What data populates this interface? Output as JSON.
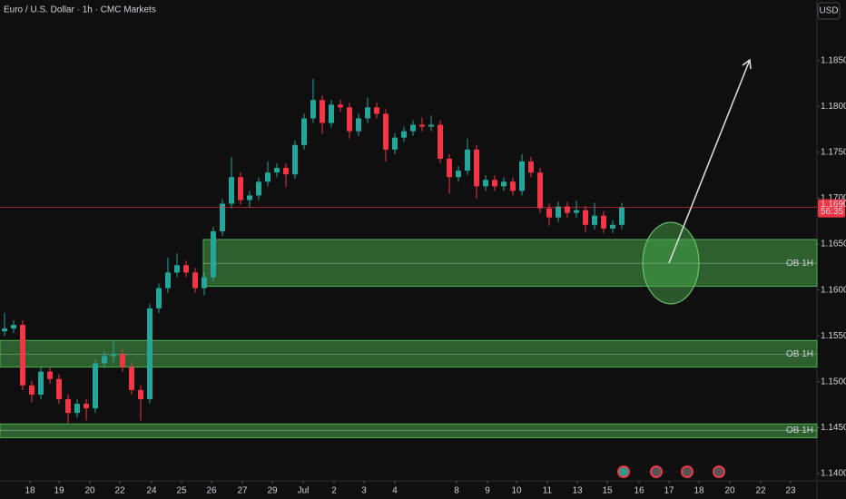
{
  "chart_data": {
    "type": "candlestick",
    "title": "Euro / U.S. Dollar · 1h · CMC Markets",
    "currency": "USD",
    "up_color": "#26a69a",
    "down_color": "#f23645",
    "open": [
      1.1555,
      1.1558,
      1.1562,
      1.1496,
      1.1486,
      1.1511,
      1.1503,
      1.1481,
      1.1466,
      1.1476,
      1.1471,
      1.152,
      1.1528,
      1.153,
      1.1516,
      1.1491,
      1.1481,
      1.158,
      1.1602,
      1.1619,
      1.1627,
      1.1619,
      1.1602,
      1.1614,
      1.1664,
      1.1694,
      1.1723,
      1.1698,
      1.1703,
      1.1718,
      1.1728,
      1.1733,
      1.1726,
      1.1758,
      1.1787,
      1.1807,
      1.1782,
      1.1802,
      1.1799,
      1.1773,
      1.1787,
      1.1799,
      1.1792,
      1.1753,
      1.1766,
      1.1773,
      1.178,
      1.1778,
      1.178,
      1.1743,
      1.1723,
      1.173,
      1.1753,
      1.1713,
      1.172,
      1.1713,
      1.1718,
      1.1708,
      1.174,
      1.1728,
      1.1689,
      1.1679,
      1.1691,
      1.1684,
      1.1687,
      1.1671,
      1.1681,
      1.1667,
      1.1671
    ],
    "high": [
      1.1575,
      1.1567,
      1.1567,
      1.1501,
      1.1516,
      1.1516,
      1.1508,
      1.1486,
      1.1481,
      1.1481,
      1.1525,
      1.1533,
      1.1545,
      1.1535,
      1.1521,
      1.1496,
      1.1585,
      1.1607,
      1.1635,
      1.164,
      1.1632,
      1.1624,
      1.1619,
      1.1669,
      1.1699,
      1.1745,
      1.1728,
      1.1708,
      1.1723,
      1.174,
      1.1738,
      1.1738,
      1.1763,
      1.1792,
      1.183,
      1.1812,
      1.1807,
      1.1807,
      1.1804,
      1.1792,
      1.181,
      1.1804,
      1.1797,
      1.1771,
      1.1778,
      1.1785,
      1.1788,
      1.179,
      1.1785,
      1.1748,
      1.1735,
      1.1765,
      1.1758,
      1.1725,
      1.1725,
      1.1723,
      1.1723,
      1.1748,
      1.1745,
      1.1733,
      1.1694,
      1.1696,
      1.1696,
      1.1697,
      1.1692,
      1.1695,
      1.1686,
      1.1676,
      1.1695
    ],
    "low": [
      1.155,
      1.1553,
      1.1491,
      1.1478,
      1.1481,
      1.1498,
      1.1476,
      1.1455,
      1.1461,
      1.1458,
      1.1466,
      1.1515,
      1.152,
      1.1511,
      1.1486,
      1.1458,
      1.1476,
      1.1575,
      1.1597,
      1.1614,
      1.1614,
      1.1597,
      1.1594,
      1.1609,
      1.1659,
      1.1689,
      1.1693,
      1.169,
      1.1698,
      1.1713,
      1.1723,
      1.1712,
      1.1721,
      1.1753,
      1.1782,
      1.177,
      1.1777,
      1.1794,
      1.1765,
      1.1768,
      1.1782,
      1.1787,
      1.174,
      1.1748,
      1.1761,
      1.1768,
      1.1773,
      1.1773,
      1.1738,
      1.1705,
      1.1718,
      1.1725,
      1.17,
      1.1708,
      1.1708,
      1.1708,
      1.1703,
      1.1703,
      1.1723,
      1.1684,
      1.167,
      1.1674,
      1.1679,
      1.1679,
      1.1663,
      1.1666,
      1.1662,
      1.1662,
      1.1666
    ],
    "close": [
      1.1558,
      1.1562,
      1.1496,
      1.1486,
      1.1511,
      1.1503,
      1.1481,
      1.1466,
      1.1476,
      1.1471,
      1.152,
      1.1528,
      1.153,
      1.1516,
      1.1491,
      1.1481,
      1.158,
      1.1602,
      1.1619,
      1.1627,
      1.1619,
      1.1602,
      1.1614,
      1.1664,
      1.1694,
      1.1723,
      1.1698,
      1.1703,
      1.1718,
      1.1728,
      1.1733,
      1.1726,
      1.1758,
      1.1787,
      1.1807,
      1.1782,
      1.1802,
      1.1799,
      1.1773,
      1.1787,
      1.1799,
      1.1792,
      1.1753,
      1.1766,
      1.1773,
      1.178,
      1.1778,
      1.178,
      1.1743,
      1.1723,
      1.173,
      1.1753,
      1.1713,
      1.172,
      1.1713,
      1.1718,
      1.1708,
      1.174,
      1.1728,
      1.1689,
      1.1679,
      1.1691,
      1.1684,
      1.1687,
      1.1671,
      1.1681,
      1.1667,
      1.1671,
      1.169
    ],
    "xlim": [
      -0.5,
      89.5
    ],
    "xticks": [
      {
        "value": 2.8,
        "label": "18"
      },
      {
        "value": 6,
        "label": "19"
      },
      {
        "value": 9.4,
        "label": "20"
      },
      {
        "value": 12.7,
        "label": "22"
      },
      {
        "value": 16.2,
        "label": "24"
      },
      {
        "value": 19.5,
        "label": "25"
      },
      {
        "value": 22.8,
        "label": "26"
      },
      {
        "value": 26.2,
        "label": "27"
      },
      {
        "value": 29.5,
        "label": "29"
      },
      {
        "value": 32.9,
        "label": "Jul"
      },
      {
        "value": 36.3,
        "label": "2"
      },
      {
        "value": 39.6,
        "label": "3"
      },
      {
        "value": 43,
        "label": "4"
      },
      {
        "value": 49.8,
        "label": "8"
      },
      {
        "value": 53.2,
        "label": "9"
      },
      {
        "value": 56.4,
        "label": "10"
      },
      {
        "value": 59.8,
        "label": "11"
      },
      {
        "value": 63.1,
        "label": "13"
      },
      {
        "value": 66.4,
        "label": "15"
      },
      {
        "value": 69.9,
        "label": "16"
      },
      {
        "value": 73.2,
        "label": "17"
      },
      {
        "value": 76.5,
        "label": "18"
      },
      {
        "value": 79.9,
        "label": "20"
      },
      {
        "value": 83.3,
        "label": "22"
      },
      {
        "value": 86.6,
        "label": "23"
      }
    ],
    "ylim": [
      1.1392,
      1.1916
    ],
    "yticks": [
      {
        "value": 1.185,
        "label": "1.18500"
      },
      {
        "value": 1.18,
        "label": "1.18000"
      },
      {
        "value": 1.175,
        "label": "1.17500"
      },
      {
        "value": 1.17,
        "label": "1.17000"
      },
      {
        "value": 1.165,
        "label": "1.16500"
      },
      {
        "value": 1.16,
        "label": "1.16000"
      },
      {
        "value": 1.155,
        "label": "1.15500"
      },
      {
        "value": 1.15,
        "label": "1.15000"
      },
      {
        "value": 1.145,
        "label": "1.14500"
      },
      {
        "value": 1.14,
        "label": "1.14000"
      }
    ],
    "last_price": {
      "value": 1.169,
      "label": "1.16900"
    },
    "countdown": "56:35",
    "zones": [
      {
        "label": "OB 1H",
        "top": 1.1655,
        "bottom": 1.1604,
        "mid": 1.1629,
        "start": 21.9
      },
      {
        "label": "OB 1H",
        "top": 1.1545,
        "bottom": 1.1516,
        "mid": 1.153,
        "start": -0.5
      },
      {
        "label": "OB 1H",
        "top": 1.1454,
        "bottom": 1.1439,
        "mid": 1.1447,
        "start": -0.5
      }
    ]
  }
}
